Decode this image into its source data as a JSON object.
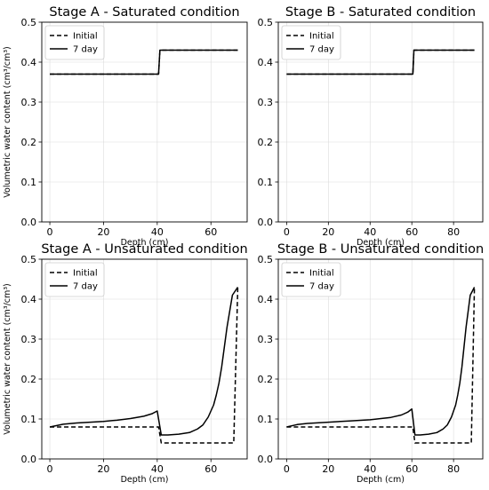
{
  "figure": {
    "ylabel_text": "Volumetric water content (cm³/cm³)"
  },
  "chart_data": [
    {
      "type": "line",
      "title": "Stage A - Saturated condition",
      "xlabel": "Depth (cm)",
      "ylabel": "Volumetric water content (cm³/cm³)",
      "xlim": [
        -3,
        73.5
      ],
      "ylim": [
        0,
        0.5
      ],
      "xticks": [
        0,
        20,
        40,
        60
      ],
      "yticks": [
        0.0,
        0.1,
        0.2,
        0.3,
        0.4,
        0.5
      ],
      "grid": true,
      "legend": "top-left",
      "series": [
        {
          "name": "Initial",
          "style": "dashed",
          "x": [
            0,
            40.5,
            41,
            70
          ],
          "y": [
            0.37,
            0.37,
            0.43,
            0.43
          ]
        },
        {
          "name": "7 day",
          "style": "solid",
          "x": [
            0,
            40.5,
            41,
            70
          ],
          "y": [
            0.37,
            0.37,
            0.43,
            0.43
          ]
        }
      ]
    },
    {
      "type": "line",
      "title": "Stage B - Saturated condition",
      "xlabel": "Depth (cm)",
      "ylabel": "",
      "xlim": [
        -4,
        94
      ],
      "ylim": [
        0,
        0.5
      ],
      "xticks": [
        0,
        20,
        40,
        60,
        80
      ],
      "yticks": [
        0.0,
        0.1,
        0.2,
        0.3,
        0.4,
        0.5
      ],
      "grid": true,
      "legend": "top-left",
      "series": [
        {
          "name": "Initial",
          "style": "dashed",
          "x": [
            0,
            60.5,
            61,
            90
          ],
          "y": [
            0.37,
            0.37,
            0.43,
            0.43
          ]
        },
        {
          "name": "7 day",
          "style": "solid",
          "x": [
            0,
            60.5,
            61,
            90
          ],
          "y": [
            0.37,
            0.37,
            0.43,
            0.43
          ]
        }
      ]
    },
    {
      "type": "line",
      "title": "Stage A - Unsaturated condition",
      "xlabel": "Depth (cm)",
      "ylabel": "Volumetric water content (cm³/cm³)",
      "xlim": [
        -3,
        73.5
      ],
      "ylim": [
        0,
        0.5
      ],
      "xticks": [
        0,
        20,
        40,
        60
      ],
      "yticks": [
        0.0,
        0.1,
        0.2,
        0.3,
        0.4,
        0.5
      ],
      "grid": true,
      "legend": "top-left",
      "series": [
        {
          "name": "Initial",
          "style": "dashed",
          "x": [
            0,
            40.5,
            41.5,
            68.5,
            70
          ],
          "y": [
            0.08,
            0.08,
            0.04,
            0.04,
            0.43
          ]
        },
        {
          "name": "7 day",
          "style": "solid",
          "x": [
            0,
            5,
            10,
            15,
            20,
            25,
            30,
            35,
            38,
            40,
            41.5,
            44,
            48,
            52,
            55,
            57,
            59,
            61,
            62,
            63,
            64,
            65,
            66,
            67,
            68,
            69,
            70
          ],
          "y": [
            0.08,
            0.087,
            0.09,
            0.092,
            0.094,
            0.097,
            0.101,
            0.107,
            0.113,
            0.12,
            0.06,
            0.06,
            0.062,
            0.066,
            0.075,
            0.085,
            0.105,
            0.135,
            0.16,
            0.19,
            0.23,
            0.28,
            0.33,
            0.37,
            0.41,
            0.42,
            0.43
          ]
        }
      ]
    },
    {
      "type": "line",
      "title": "Stage B - Unsaturated condition",
      "xlabel": "Depth (cm)",
      "ylabel": "",
      "xlim": [
        -4,
        94
      ],
      "ylim": [
        0,
        0.5
      ],
      "xticks": [
        0,
        20,
        40,
        60,
        80
      ],
      "yticks": [
        0.0,
        0.1,
        0.2,
        0.3,
        0.4,
        0.5
      ],
      "grid": true,
      "legend": "top-left",
      "series": [
        {
          "name": "Initial",
          "style": "dashed",
          "x": [
            0,
            60.5,
            61.5,
            88.5,
            90
          ],
          "y": [
            0.08,
            0.08,
            0.04,
            0.04,
            0.43
          ]
        },
        {
          "name": "7 day",
          "style": "solid",
          "x": [
            0,
            5,
            10,
            20,
            30,
            40,
            50,
            55,
            58,
            60,
            61.5,
            64,
            68,
            72,
            75,
            77,
            79,
            81,
            82,
            83,
            84,
            85,
            86,
            87,
            88,
            89,
            90
          ],
          "y": [
            0.08,
            0.086,
            0.089,
            0.092,
            0.095,
            0.098,
            0.104,
            0.11,
            0.117,
            0.125,
            0.06,
            0.06,
            0.062,
            0.066,
            0.075,
            0.085,
            0.105,
            0.135,
            0.16,
            0.19,
            0.23,
            0.28,
            0.33,
            0.37,
            0.41,
            0.42,
            0.43
          ]
        }
      ]
    }
  ]
}
